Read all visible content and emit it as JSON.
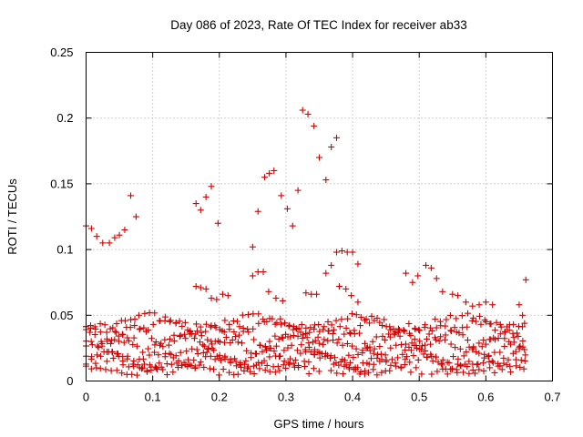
{
  "chart_data": {
    "type": "scatter",
    "title": "Day 086 of 2023, Rate Of TEC Index for receiver ab33",
    "xlabel": "GPS time / hours",
    "ylabel": "ROTI / TECUs",
    "xlim": [
      0,
      0.7
    ],
    "ylim": [
      0,
      0.25
    ],
    "xticks": [
      "0",
      "0.1",
      "0.2",
      "0.3",
      "0.4",
      "0.5",
      "0.6",
      "0.7"
    ],
    "yticks": [
      "0",
      "0.05",
      "0.1",
      "0.15",
      "0.2",
      "0.25"
    ],
    "grid": true,
    "legend": "none",
    "marker_color": "#d00000",
    "marker": "plus",
    "series": [
      {
        "points": [
          [
            0.0,
            0.118
          ],
          [
            0.008,
            0.116
          ],
          [
            0.016,
            0.11
          ],
          [
            0.025,
            0.105
          ],
          [
            0.035,
            0.105
          ],
          [
            0.043,
            0.109
          ],
          [
            0.05,
            0.111
          ],
          [
            0.058,
            0.115
          ],
          [
            0.067,
            0.141
          ],
          [
            0.075,
            0.125
          ],
          [
            0.165,
            0.135
          ],
          [
            0.172,
            0.13
          ],
          [
            0.18,
            0.14
          ],
          [
            0.188,
            0.148
          ],
          [
            0.198,
            0.12
          ],
          [
            0.25,
            0.102
          ],
          [
            0.258,
            0.129
          ],
          [
            0.268,
            0.155
          ],
          [
            0.275,
            0.158
          ],
          [
            0.282,
            0.16
          ],
          [
            0.293,
            0.141
          ],
          [
            0.302,
            0.131
          ],
          [
            0.31,
            0.118
          ],
          [
            0.318,
            0.145
          ],
          [
            0.325,
            0.206
          ],
          [
            0.333,
            0.203
          ],
          [
            0.342,
            0.194
          ],
          [
            0.35,
            0.17
          ],
          [
            0.36,
            0.153
          ],
          [
            0.368,
            0.178
          ],
          [
            0.376,
            0.185
          ],
          [
            0.36,
            0.082
          ],
          [
            0.368,
            0.088
          ],
          [
            0.376,
            0.098
          ],
          [
            0.384,
            0.099
          ],
          [
            0.392,
            0.098
          ],
          [
            0.4,
            0.098
          ],
          [
            0.408,
            0.089
          ],
          [
            0.48,
            0.082
          ],
          [
            0.49,
            0.075
          ],
          [
            0.498,
            0.08
          ],
          [
            0.51,
            0.088
          ],
          [
            0.518,
            0.086
          ],
          [
            0.526,
            0.078
          ],
          [
            0.535,
            0.068
          ],
          [
            0.66,
            0.077
          ],
          [
            0.25,
            0.08
          ],
          [
            0.258,
            0.083
          ],
          [
            0.266,
            0.083
          ],
          [
            0.274,
            0.068
          ],
          [
            0.285,
            0.063
          ],
          [
            0.295,
            0.061
          ],
          [
            0.165,
            0.072
          ],
          [
            0.172,
            0.071
          ],
          [
            0.18,
            0.07
          ],
          [
            0.188,
            0.063
          ],
          [
            0.196,
            0.062
          ],
          [
            0.205,
            0.066
          ],
          [
            0.213,
            0.065
          ],
          [
            0.33,
            0.067
          ],
          [
            0.338,
            0.066
          ],
          [
            0.346,
            0.066
          ],
          [
            0.38,
            0.072
          ],
          [
            0.39,
            0.07
          ],
          [
            0.398,
            0.065
          ],
          [
            0.408,
            0.06
          ],
          [
            0.55,
            0.066
          ],
          [
            0.558,
            0.065
          ],
          [
            0.57,
            0.06
          ],
          [
            0.58,
            0.057
          ],
          [
            0.59,
            0.058
          ],
          [
            0.6,
            0.06
          ],
          [
            0.61,
            0.058
          ],
          [
            0.65,
            0.058
          ],
          [
            0.655,
            0.05
          ]
        ]
      }
    ]
  }
}
